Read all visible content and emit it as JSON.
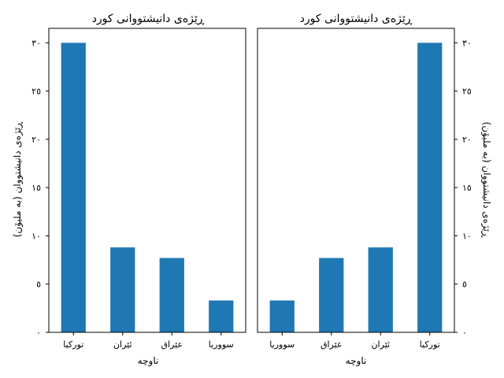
{
  "colors": {
    "bar": "#1f77b4"
  },
  "chart_data": [
    {
      "type": "bar",
      "title": "ڕێژەی دانیشتووانی کورد",
      "xlabel": "ناوچە",
      "ylabel": "ڕێژەی دانیشتووان (بە ملیۆن)",
      "yaxis_side": "left",
      "categories": [
        "تورکیا",
        "ئێران",
        "عێراق",
        "سووریا"
      ],
      "values": [
        30,
        8.8,
        7.7,
        3.3
      ],
      "ylim": [
        0,
        31.5
      ],
      "yticks": [
        0,
        5,
        10,
        15,
        20,
        25,
        30
      ],
      "ytick_labels": [
        "٠",
        "٥",
        "١٠",
        "١٥",
        "٢٠",
        "٢٥",
        "٣٠"
      ],
      "grid": false,
      "legend": "none"
    },
    {
      "type": "bar",
      "title": "ڕێژەی دانیشتووانی کورد",
      "xlabel": "ناوچە",
      "ylabel": "ڕێژەی دانیشتووان (بە ملیۆن)",
      "yaxis_side": "right",
      "categories": [
        "سووریا",
        "عێراق",
        "ئێران",
        "تورکیا"
      ],
      "values": [
        3.3,
        7.7,
        8.8,
        30
      ],
      "ylim": [
        0,
        31.5
      ],
      "yticks": [
        0,
        5,
        10,
        15,
        20,
        25,
        30
      ],
      "ytick_labels": [
        "٠",
        "٥",
        "١٠",
        "١٥",
        "٢٠",
        "٢٥",
        "٣٠"
      ],
      "grid": false,
      "legend": "none"
    }
  ]
}
